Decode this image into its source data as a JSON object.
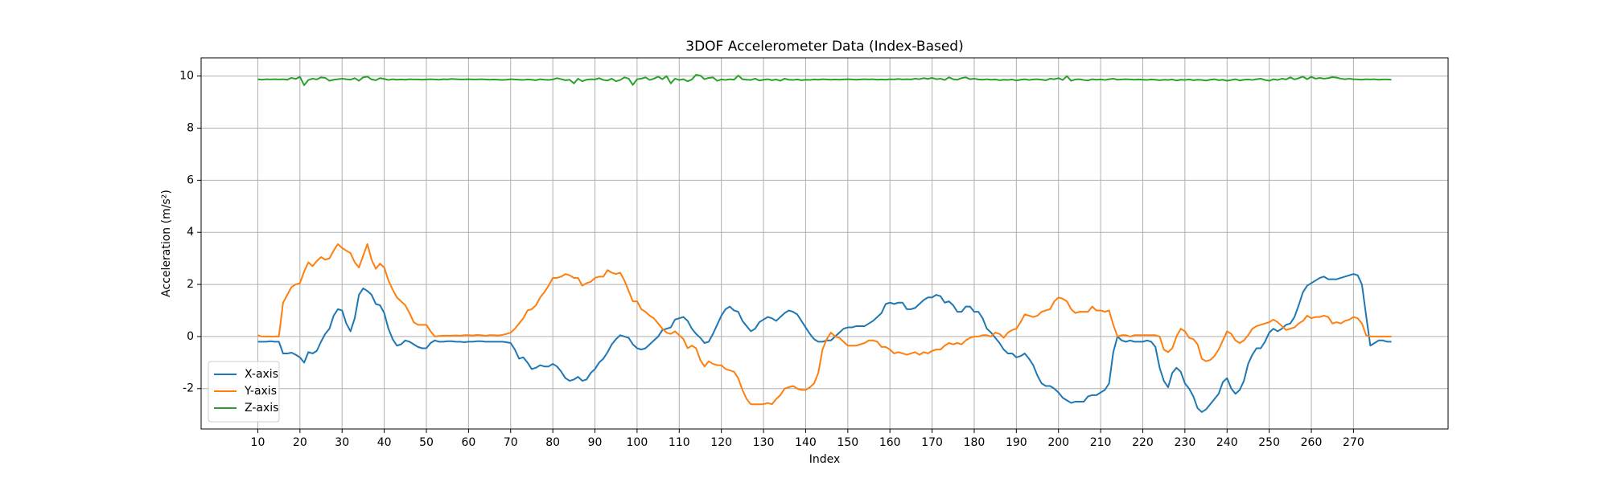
{
  "chart_data": {
    "type": "line",
    "title": "3DOF Accelerometer Data (Index-Based)",
    "x_label": "Index",
    "y_label": "Acceleration (m/s²)",
    "xlim": [
      -3.45,
      292.45
    ],
    "ylim": [
      -3.55,
      10.7
    ],
    "xticks": [
      10,
      20,
      30,
      40,
      50,
      60,
      70,
      80,
      90,
      100,
      110,
      120,
      130,
      140,
      150,
      160,
      170,
      180,
      190,
      200,
      210,
      220,
      230,
      240,
      250,
      260,
      270
    ],
    "yticks": [
      -2,
      0,
      2,
      4,
      6,
      8,
      10
    ],
    "grid": true,
    "legend": "lower left",
    "x": [
      10,
      11,
      12,
      13,
      14,
      15,
      16,
      17,
      18,
      19,
      20,
      21,
      22,
      23,
      24,
      25,
      26,
      27,
      28,
      29,
      30,
      31,
      32,
      33,
      34,
      35,
      36,
      37,
      38,
      39,
      40,
      41,
      42,
      43,
      44,
      45,
      46,
      47,
      48,
      49,
      50,
      51,
      52,
      53,
      54,
      55,
      56,
      57,
      58,
      59,
      60,
      61,
      62,
      63,
      64,
      65,
      66,
      67,
      68,
      69,
      70,
      71,
      72,
      73,
      74,
      75,
      76,
      77,
      78,
      79,
      80,
      81,
      82,
      83,
      84,
      85,
      86,
      87,
      88,
      89,
      90,
      91,
      92,
      93,
      94,
      95,
      96,
      97,
      98,
      99,
      100,
      101,
      102,
      103,
      104,
      105,
      106,
      107,
      108,
      109,
      110,
      111,
      112,
      113,
      114,
      115,
      116,
      117,
      118,
      119,
      120,
      121,
      122,
      123,
      124,
      125,
      126,
      127,
      128,
      129,
      130,
      131,
      132,
      133,
      134,
      135,
      136,
      137,
      138,
      139,
      140,
      141,
      142,
      143,
      144,
      145,
      146,
      147,
      148,
      149,
      150,
      151,
      152,
      153,
      154,
      155,
      156,
      157,
      158,
      159,
      160,
      161,
      162,
      163,
      164,
      165,
      166,
      167,
      168,
      169,
      170,
      171,
      172,
      173,
      174,
      175,
      176,
      177,
      178,
      179,
      180,
      181,
      182,
      183,
      184,
      185,
      186,
      187,
      188,
      189,
      190,
      191,
      192,
      193,
      194,
      195,
      196,
      197,
      198,
      199,
      200,
      201,
      202,
      203,
      204,
      205,
      206,
      207,
      208,
      209,
      210,
      211,
      212,
      213,
      214,
      215,
      216,
      217,
      218,
      219,
      220,
      221,
      222,
      223,
      224,
      225,
      226,
      227,
      228,
      229,
      230,
      231,
      232,
      233,
      234,
      235,
      236,
      237,
      238,
      239,
      240,
      241,
      242,
      243,
      244,
      245,
      246,
      247,
      248,
      249,
      250,
      251,
      252,
      253,
      254,
      255,
      256,
      257,
      258,
      259,
      260,
      261,
      262,
      263,
      264,
      265,
      266,
      267,
      268,
      269,
      270,
      271,
      272,
      273,
      274,
      275,
      276,
      277,
      278,
      279
    ],
    "series": [
      {
        "name": "X-axis",
        "color": "#1f77b4",
        "values": [
          -0.2,
          -0.2,
          -0.2,
          -0.18,
          -0.2,
          -0.2,
          -0.65,
          -0.65,
          -0.62,
          -0.7,
          -0.8,
          -1.0,
          -0.6,
          -0.65,
          -0.55,
          -0.2,
          0.1,
          0.3,
          0.8,
          1.05,
          1.0,
          0.5,
          0.2,
          0.7,
          1.6,
          1.85,
          1.75,
          1.6,
          1.25,
          1.2,
          0.9,
          0.3,
          -0.1,
          -0.35,
          -0.3,
          -0.15,
          -0.2,
          -0.3,
          -0.4,
          -0.45,
          -0.45,
          -0.25,
          -0.15,
          -0.2,
          -0.2,
          -0.18,
          -0.18,
          -0.2,
          -0.2,
          -0.22,
          -0.2,
          -0.2,
          -0.18,
          -0.18,
          -0.2,
          -0.2,
          -0.2,
          -0.2,
          -0.2,
          -0.22,
          -0.25,
          -0.5,
          -0.85,
          -0.8,
          -1.0,
          -1.25,
          -1.2,
          -1.1,
          -1.15,
          -1.15,
          -1.05,
          -1.15,
          -1.35,
          -1.6,
          -1.7,
          -1.65,
          -1.55,
          -1.7,
          -1.65,
          -1.4,
          -1.25,
          -1.0,
          -0.85,
          -0.6,
          -0.3,
          -0.1,
          0.05,
          0.0,
          -0.05,
          -0.3,
          -0.45,
          -0.5,
          -0.45,
          -0.3,
          -0.15,
          0.0,
          0.25,
          0.3,
          0.35,
          0.65,
          0.7,
          0.75,
          0.6,
          0.3,
          0.1,
          -0.05,
          -0.25,
          -0.2,
          0.1,
          0.45,
          0.8,
          1.05,
          1.15,
          1.0,
          0.95,
          0.6,
          0.4,
          0.2,
          0.3,
          0.55,
          0.65,
          0.75,
          0.7,
          0.6,
          0.75,
          0.9,
          1.0,
          0.95,
          0.85,
          0.6,
          0.35,
          0.1,
          -0.1,
          -0.2,
          -0.2,
          -0.15,
          -0.15,
          0.0,
          0.15,
          0.3,
          0.35,
          0.35,
          0.4,
          0.4,
          0.4,
          0.5,
          0.6,
          0.75,
          0.9,
          1.25,
          1.3,
          1.25,
          1.3,
          1.3,
          1.05,
          1.05,
          1.1,
          1.25,
          1.4,
          1.5,
          1.5,
          1.6,
          1.55,
          1.3,
          1.35,
          1.2,
          0.95,
          0.95,
          1.15,
          1.15,
          0.95,
          0.95,
          0.7,
          0.3,
          0.15,
          -0.05,
          -0.25,
          -0.5,
          -0.65,
          -0.65,
          -0.8,
          -0.75,
          -0.65,
          -0.85,
          -1.1,
          -1.5,
          -1.8,
          -1.9,
          -1.9,
          -2.0,
          -2.15,
          -2.35,
          -2.45,
          -2.55,
          -2.5,
          -2.5,
          -2.5,
          -2.3,
          -2.25,
          -2.25,
          -2.15,
          -2.05,
          -1.8,
          -0.6,
          0.0,
          -0.15,
          -0.2,
          -0.15,
          -0.2,
          -0.2,
          -0.2,
          -0.15,
          -0.2,
          -0.4,
          -1.2,
          -1.7,
          -1.95,
          -1.4,
          -1.2,
          -1.35,
          -1.8,
          -2.0,
          -2.3,
          -2.75,
          -2.9,
          -2.8,
          -2.6,
          -2.4,
          -2.2,
          -1.75,
          -1.6,
          -2.0,
          -2.2,
          -2.05,
          -1.7,
          -1.05,
          -0.7,
          -0.45,
          -0.45,
          -0.2,
          0.15,
          0.3,
          0.2,
          0.3,
          0.45,
          0.5,
          0.75,
          1.2,
          1.7,
          1.95,
          2.05,
          2.15,
          2.25,
          2.3,
          2.2,
          2.2,
          2.2,
          2.25,
          2.3,
          2.35,
          2.4,
          2.35,
          2.0,
          0.8,
          -0.35,
          -0.25,
          -0.15,
          -0.15,
          -0.2,
          -0.2
        ]
      },
      {
        "name": "Y-axis",
        "color": "#ff7f0e",
        "values": [
          0.05,
          0.0,
          0.0,
          0.0,
          0.0,
          0.0,
          1.3,
          1.6,
          1.9,
          2.0,
          2.05,
          2.5,
          2.85,
          2.7,
          2.9,
          3.05,
          2.95,
          3.0,
          3.3,
          3.55,
          3.4,
          3.3,
          3.2,
          2.85,
          2.65,
          3.1,
          3.55,
          2.95,
          2.6,
          2.8,
          2.65,
          2.15,
          1.8,
          1.5,
          1.35,
          1.2,
          0.9,
          0.55,
          0.45,
          0.45,
          0.45,
          0.2,
          0.0,
          0.02,
          0.03,
          0.03,
          0.03,
          0.04,
          0.03,
          0.05,
          0.05,
          0.04,
          0.06,
          0.05,
          0.03,
          0.05,
          0.05,
          0.04,
          0.06,
          0.1,
          0.15,
          0.3,
          0.5,
          0.7,
          1.0,
          1.05,
          1.2,
          1.5,
          1.7,
          1.95,
          2.25,
          2.25,
          2.3,
          2.4,
          2.35,
          2.25,
          2.25,
          1.95,
          2.05,
          2.1,
          2.25,
          2.3,
          2.3,
          2.55,
          2.45,
          2.4,
          2.45,
          2.15,
          1.75,
          1.35,
          1.35,
          1.05,
          0.95,
          0.8,
          0.7,
          0.5,
          0.3,
          0.15,
          0.1,
          0.2,
          0.05,
          -0.1,
          -0.45,
          -0.35,
          -0.45,
          -0.9,
          -1.15,
          -0.95,
          -1.05,
          -1.1,
          -1.1,
          -1.25,
          -1.3,
          -1.35,
          -1.6,
          -2.05,
          -2.4,
          -2.6,
          -2.6,
          -2.6,
          -2.6,
          -2.55,
          -2.6,
          -2.4,
          -2.25,
          -2.0,
          -1.95,
          -1.9,
          -2.0,
          -2.05,
          -2.05,
          -1.95,
          -1.8,
          -1.4,
          -0.5,
          -0.1,
          0.15,
          0.0,
          -0.05,
          -0.2,
          -0.35,
          -0.35,
          -0.35,
          -0.3,
          -0.25,
          -0.15,
          -0.15,
          -0.2,
          -0.4,
          -0.4,
          -0.5,
          -0.65,
          -0.6,
          -0.65,
          -0.7,
          -0.65,
          -0.6,
          -0.7,
          -0.6,
          -0.65,
          -0.55,
          -0.5,
          -0.5,
          -0.35,
          -0.25,
          -0.3,
          -0.25,
          -0.3,
          -0.15,
          -0.05,
          0.0,
          0.0,
          0.05,
          0.05,
          0.0,
          0.15,
          0.1,
          -0.05,
          0.15,
          0.25,
          0.3,
          0.55,
          0.85,
          0.8,
          0.75,
          0.8,
          0.95,
          1.0,
          1.05,
          1.35,
          1.5,
          1.45,
          1.35,
          1.05,
          0.9,
          0.95,
          0.95,
          0.95,
          1.15,
          1.0,
          1.0,
          0.95,
          1.0,
          0.45,
          0.0,
          0.05,
          0.05,
          0.0,
          0.05,
          0.05,
          0.05,
          0.05,
          0.05,
          0.05,
          0.0,
          -0.5,
          -0.6,
          -0.45,
          0.0,
          0.3,
          0.2,
          -0.05,
          -0.1,
          -0.3,
          -0.85,
          -0.95,
          -0.9,
          -0.75,
          -0.5,
          -0.15,
          0.2,
          0.1,
          -0.15,
          -0.25,
          -0.15,
          0.05,
          0.3,
          0.4,
          0.45,
          0.5,
          0.55,
          0.65,
          0.55,
          0.4,
          0.25,
          0.3,
          0.35,
          0.5,
          0.6,
          0.8,
          0.7,
          0.75,
          0.75,
          0.8,
          0.75,
          0.5,
          0.55,
          0.5,
          0.6,
          0.65,
          0.75,
          0.7,
          0.5,
          0.05,
          0.0,
          0.0,
          0.0,
          0.0,
          0.0,
          0.0
        ]
      },
      {
        "name": "Z-axis",
        "color": "#2ca02c",
        "values": [
          9.88,
          9.86,
          9.88,
          9.87,
          9.88,
          9.87,
          9.88,
          9.86,
          9.93,
          9.89,
          9.97,
          9.65,
          9.85,
          9.9,
          9.87,
          9.95,
          9.93,
          9.82,
          9.86,
          9.88,
          9.9,
          9.88,
          9.86,
          9.92,
          9.82,
          9.95,
          9.98,
          9.87,
          9.84,
          9.92,
          9.89,
          9.85,
          9.88,
          9.86,
          9.87,
          9.86,
          9.88,
          9.87,
          9.87,
          9.86,
          9.87,
          9.88,
          9.87,
          9.86,
          9.88,
          9.87,
          9.89,
          9.88,
          9.87,
          9.87,
          9.88,
          9.87,
          9.87,
          9.88,
          9.87,
          9.86,
          9.87,
          9.86,
          9.85,
          9.86,
          9.88,
          9.87,
          9.86,
          9.85,
          9.87,
          9.86,
          9.84,
          9.88,
          9.86,
          9.85,
          9.87,
          9.92,
          9.88,
          9.84,
          9.86,
          9.72,
          9.9,
          9.8,
          9.86,
          9.88,
          9.87,
          9.92,
          9.85,
          9.83,
          9.9,
          9.8,
          9.85,
          9.95,
          9.9,
          9.66,
          9.88,
          9.9,
          9.95,
          9.85,
          9.9,
          9.98,
          9.88,
          10.0,
          9.72,
          9.9,
          9.85,
          9.88,
          9.8,
          9.87,
          10.05,
          10.02,
          9.88,
          9.93,
          9.95,
          9.82,
          9.87,
          9.85,
          9.88,
          9.86,
          10.02,
          9.88,
          9.86,
          9.85,
          9.9,
          9.83,
          9.86,
          9.88,
          9.84,
          9.87,
          9.82,
          9.9,
          9.86,
          9.85,
          9.87,
          9.84,
          9.86,
          9.85,
          9.87,
          9.86,
          9.88,
          9.87,
          9.86,
          9.87,
          9.86,
          9.87,
          9.88,
          9.87,
          9.86,
          9.87,
          9.88,
          9.87,
          9.88,
          9.86,
          9.87,
          9.86,
          9.88,
          9.87,
          9.89,
          9.87,
          9.88,
          9.87,
          9.9,
          9.88,
          9.92,
          9.89,
          9.93,
          9.88,
          9.9,
          9.85,
          9.95,
          9.88,
          9.86,
          9.92,
          9.95,
          9.88,
          9.9,
          9.87,
          9.86,
          9.88,
          9.86,
          9.87,
          9.84,
          9.86,
          9.85,
          9.87,
          9.83,
          9.86,
          9.88,
          9.85,
          9.87,
          9.88,
          9.86,
          9.84,
          9.9,
          9.88,
          9.92,
          9.85,
          10.0,
          9.82,
          9.87,
          9.88,
          9.85,
          9.83,
          9.88,
          9.86,
          9.87,
          9.85,
          9.88,
          9.9,
          9.86,
          9.87,
          9.88,
          9.87,
          9.86,
          9.87,
          9.86,
          9.85,
          9.87,
          9.86,
          9.84,
          9.86,
          9.85,
          9.87,
          9.83,
          9.86,
          9.85,
          9.87,
          9.84,
          9.86,
          9.85,
          9.83,
          9.86,
          9.88,
          9.84,
          9.86,
          9.82,
          9.85,
          9.88,
          9.83,
          9.86,
          9.87,
          9.85,
          9.88,
          9.9,
          9.85,
          9.82,
          9.88,
          9.85,
          9.9,
          9.87,
          9.95,
          9.87,
          9.92,
          9.98,
          9.88,
          9.97,
          9.9,
          9.93,
          9.9,
          9.92,
          9.96,
          9.94,
          9.9,
          9.88,
          9.9,
          9.88,
          9.87,
          9.86,
          9.88,
          9.87,
          9.88,
          9.86,
          9.87,
          9.87,
          9.86
        ]
      }
    ]
  }
}
